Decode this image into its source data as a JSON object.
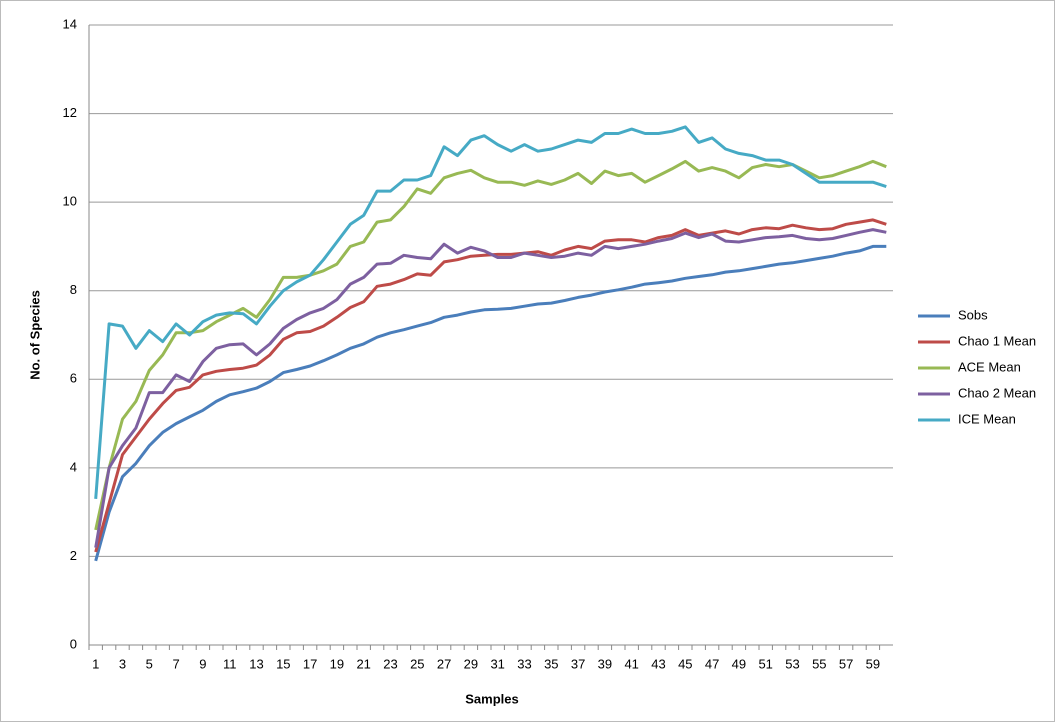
{
  "chart_data": {
    "type": "line",
    "x_label": "Samples",
    "y_label": "No. of Species",
    "categories": [
      1,
      null,
      3,
      null,
      5,
      null,
      7,
      null,
      9,
      null,
      11,
      null,
      13,
      null,
      15,
      null,
      17,
      null,
      19,
      null,
      21,
      null,
      23,
      null,
      25,
      null,
      27,
      null,
      29,
      null,
      31,
      null,
      33,
      null,
      35,
      null,
      37,
      null,
      39,
      null,
      41,
      null,
      43,
      null,
      45,
      null,
      47,
      null,
      49,
      null,
      51,
      null,
      53,
      null,
      55,
      null,
      57,
      null,
      59,
      null
    ],
    "ylim": [
      0,
      14
    ],
    "yticks": [
      0,
      2,
      4,
      6,
      8,
      10,
      12,
      14
    ],
    "grid": true,
    "legend": "right",
    "series": [
      {
        "name": "Sobs",
        "color": "#4a7ebb",
        "values": [
          1.9,
          3.0,
          3.8,
          4.1,
          4.5,
          4.8,
          5.0,
          5.15,
          5.3,
          5.5,
          5.65,
          5.72,
          5.8,
          5.95,
          6.15,
          6.22,
          6.3,
          6.42,
          6.55,
          6.7,
          6.8,
          6.95,
          7.05,
          7.12,
          7.2,
          7.28,
          7.4,
          7.45,
          7.52,
          7.57,
          7.58,
          7.6,
          7.65,
          7.7,
          7.72,
          7.78,
          7.85,
          7.9,
          7.97,
          8.02,
          8.08,
          8.15,
          8.18,
          8.22,
          8.28,
          8.32,
          8.36,
          8.42,
          8.45,
          8.5,
          8.55,
          8.6,
          8.63,
          8.68,
          8.73,
          8.78,
          8.85,
          8.9,
          9.0,
          9.0
        ]
      },
      {
        "name": "Chao 1 Mean",
        "color": "#be4b48",
        "values": [
          2.1,
          3.2,
          4.3,
          4.7,
          5.1,
          5.45,
          5.75,
          5.82,
          6.1,
          6.18,
          6.22,
          6.25,
          6.32,
          6.55,
          6.9,
          7.05,
          7.08,
          7.2,
          7.4,
          7.62,
          7.75,
          8.1,
          8.15,
          8.25,
          8.38,
          8.35,
          8.65,
          8.7,
          8.78,
          8.8,
          8.82,
          8.82,
          8.85,
          8.88,
          8.8,
          8.92,
          9.0,
          8.95,
          9.12,
          9.15,
          9.15,
          9.1,
          9.2,
          9.25,
          9.38,
          9.25,
          9.3,
          9.35,
          9.28,
          9.38,
          9.42,
          9.4,
          9.48,
          9.42,
          9.38,
          9.4,
          9.5,
          9.55,
          9.6,
          9.5
        ]
      },
      {
        "name": "ACE Mean",
        "color": "#98b954",
        "values": [
          2.6,
          4.0,
          5.1,
          5.5,
          6.2,
          6.55,
          7.05,
          7.05,
          7.1,
          7.3,
          7.45,
          7.6,
          7.4,
          7.8,
          8.3,
          8.3,
          8.35,
          8.45,
          8.6,
          9.0,
          9.1,
          9.55,
          9.6,
          9.9,
          10.3,
          10.2,
          10.55,
          10.65,
          10.72,
          10.55,
          10.45,
          10.45,
          10.38,
          10.48,
          10.4,
          10.5,
          10.65,
          10.42,
          10.7,
          10.6,
          10.65,
          10.45,
          10.6,
          10.75,
          10.92,
          10.7,
          10.78,
          10.7,
          10.55,
          10.78,
          10.85,
          10.8,
          10.85,
          10.7,
          10.55,
          10.6,
          10.7,
          10.8,
          10.92,
          10.8
        ]
      },
      {
        "name": "Chao 2 Mean",
        "color": "#7d60a0",
        "values": [
          2.2,
          4.0,
          4.5,
          4.9,
          5.7,
          5.7,
          6.1,
          5.95,
          6.4,
          6.7,
          6.78,
          6.8,
          6.55,
          6.8,
          7.15,
          7.35,
          7.5,
          7.6,
          7.8,
          8.15,
          8.3,
          8.6,
          8.62,
          8.8,
          8.75,
          8.72,
          9.05,
          8.85,
          8.98,
          8.9,
          8.75,
          8.75,
          8.85,
          8.8,
          8.75,
          8.78,
          8.85,
          8.8,
          9.0,
          8.95,
          9.0,
          9.05,
          9.12,
          9.18,
          9.3,
          9.2,
          9.28,
          9.12,
          9.1,
          9.15,
          9.2,
          9.22,
          9.25,
          9.18,
          9.15,
          9.18,
          9.25,
          9.32,
          9.38,
          9.32
        ]
      },
      {
        "name": "ICE Mean",
        "color": "#46aac5",
        "values": [
          3.3,
          7.25,
          7.2,
          6.7,
          7.1,
          6.85,
          7.25,
          7.0,
          7.3,
          7.45,
          7.5,
          7.48,
          7.25,
          7.65,
          8.0,
          8.2,
          8.35,
          8.7,
          9.1,
          9.5,
          9.7,
          10.25,
          10.25,
          10.5,
          10.5,
          10.6,
          11.25,
          11.05,
          11.4,
          11.5,
          11.3,
          11.15,
          11.3,
          11.15,
          11.2,
          11.3,
          11.4,
          11.35,
          11.55,
          11.55,
          11.65,
          11.55,
          11.55,
          11.6,
          11.7,
          11.35,
          11.45,
          11.2,
          11.1,
          11.05,
          10.95,
          10.95,
          10.85,
          10.65,
          10.45,
          10.45,
          10.45,
          10.45,
          10.45,
          10.35
        ]
      }
    ]
  }
}
